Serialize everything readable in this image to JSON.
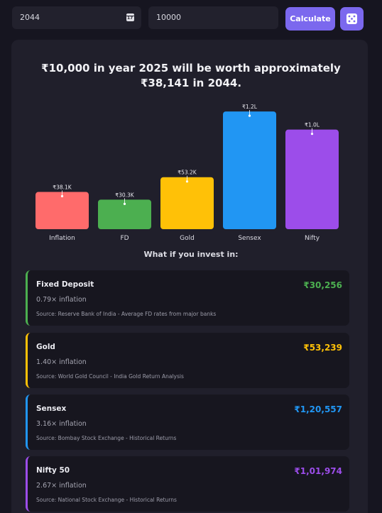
{
  "inputs": {
    "year_value": "2044",
    "amount_value": "10000"
  },
  "buttons": {
    "calculate_label": "Calculate",
    "random_icon": "dice-icon"
  },
  "result": {
    "headline": "₹10,000 in year 2025 will be worth approximately ₹38,141 in 2044."
  },
  "chart_data": {
    "type": "bar",
    "categories": [
      "Inflation",
      "FD",
      "Gold",
      "Sensex",
      "Nifty"
    ],
    "values": [
      38141,
      30256,
      53239,
      120557,
      101974
    ],
    "value_labels": [
      "₹38.1K",
      "₹30.3K",
      "₹53.2K",
      "₹1.2L",
      "₹1.0L"
    ],
    "colors": [
      "#ff6b6b",
      "#4caf50",
      "#ffc107",
      "#2196f3",
      "#9c4dea"
    ],
    "ylim": [
      0,
      125000
    ],
    "grid": false,
    "legend": "none"
  },
  "comparison": {
    "title": "What if you invest in:",
    "items": [
      {
        "name": "Fixed Deposit",
        "value": "₹30,256",
        "multiplier": "0.79× inflation",
        "source": "Source: Reserve Bank of India - Average FD rates from major banks",
        "color": "#4caf50"
      },
      {
        "name": "Gold",
        "value": "₹53,239",
        "multiplier": "1.40× inflation",
        "source": "Source: World Gold Council - India Gold Return Analysis",
        "color": "#ffc107"
      },
      {
        "name": "Sensex",
        "value": "₹1,20,557",
        "multiplier": "3.16× inflation",
        "source": "Source: Bombay Stock Exchange - Historical Returns",
        "color": "#2196f3"
      },
      {
        "name": "Nifty 50",
        "value": "₹1,01,974",
        "multiplier": "2.67× inflation",
        "source": "Source: National Stock Exchange - Historical Returns",
        "color": "#9c4dea"
      }
    ]
  }
}
